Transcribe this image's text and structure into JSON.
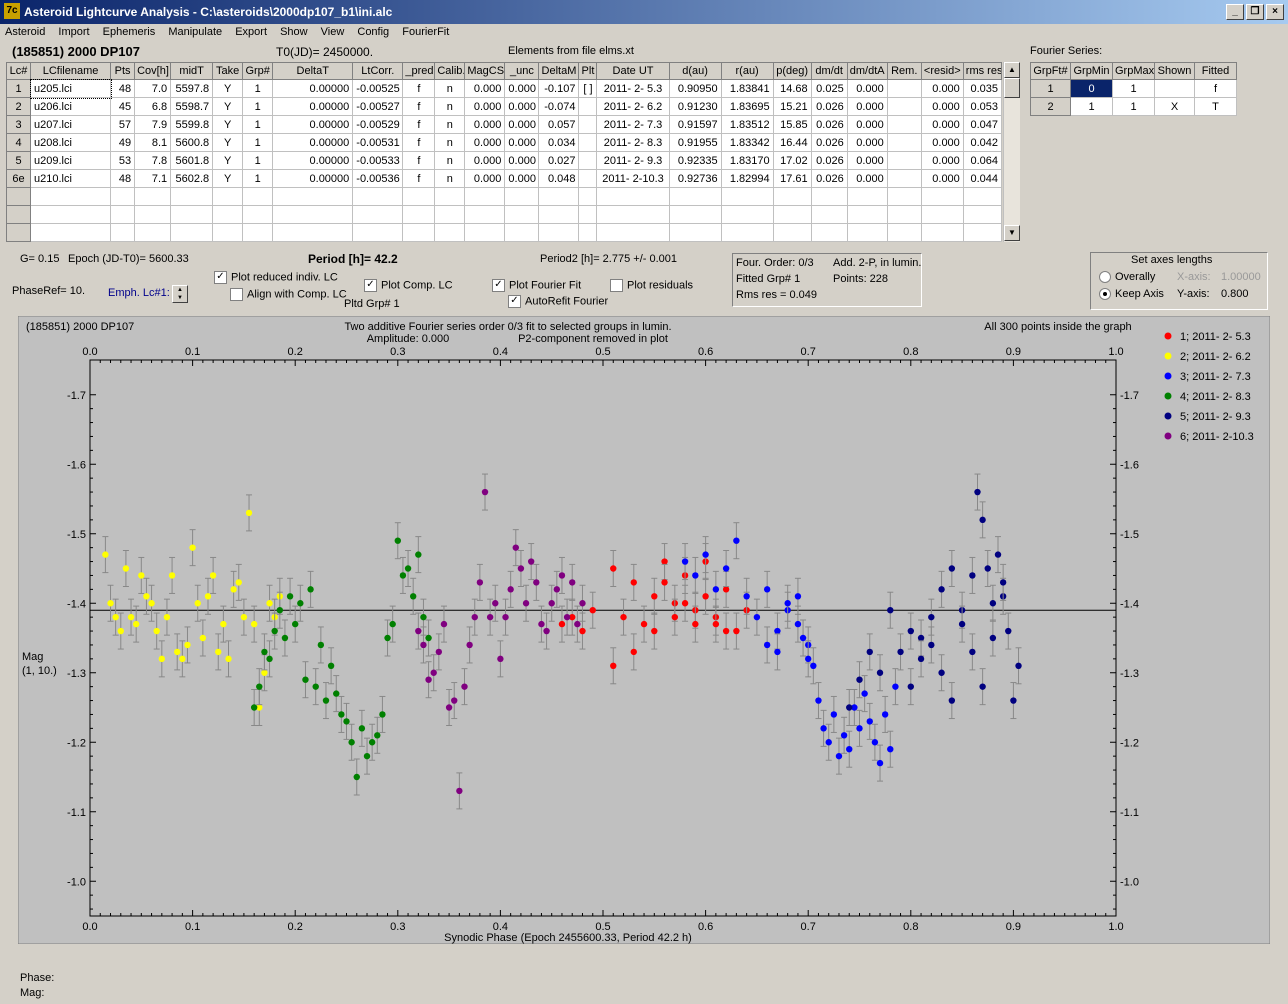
{
  "window": {
    "title": "Asteroid Lightcurve Analysis - C:\\asteroids\\2000dp107_b1\\ini.alc",
    "app_icon": "7c"
  },
  "menu": [
    "Asteroid",
    "Import",
    "Ephemeris",
    "Manipulate",
    "Export",
    "Show",
    "View",
    "Config",
    "FourierFit"
  ],
  "header": {
    "object": "(185851) 2000 DP107",
    "t0": "T0(JD)= 2450000.",
    "elements": "Elements from file elms.xt"
  },
  "lc_table": {
    "columns": [
      "Lc#",
      "LCfilename",
      "Pts",
      "Cov[h]",
      "midT",
      "Take",
      "Grp#",
      "DeltaT",
      "LtCorr.",
      "_pred.",
      "Calib.",
      "MagCS",
      "_unc",
      "DeltaM",
      "Plt",
      "Date UT",
      "d(au)",
      "r(au)",
      "p(deg)",
      "dm/dt",
      "dm/dtA",
      "Rem.",
      "<resid>",
      "rms res"
    ],
    "rows": [
      [
        "1",
        "u205.lci",
        "48",
        "7.0",
        "5597.8",
        "Y",
        "1",
        "0.00000",
        "-0.00525",
        "f",
        "n",
        "0.000",
        "0.000",
        "-0.107",
        "[ ]",
        "2011- 2- 5.3",
        "0.90950",
        "1.83841",
        "14.68",
        "0.025",
        "0.000",
        "",
        "0.000",
        "0.035"
      ],
      [
        "2",
        "u206.lci",
        "45",
        "6.8",
        "5598.7",
        "Y",
        "1",
        "0.00000",
        "-0.00527",
        "f",
        "n",
        "0.000",
        "0.000",
        "-0.074",
        "",
        "2011- 2- 6.2",
        "0.91230",
        "1.83695",
        "15.21",
        "0.026",
        "0.000",
        "",
        "0.000",
        "0.053"
      ],
      [
        "3",
        "u207.lci",
        "57",
        "7.9",
        "5599.8",
        "Y",
        "1",
        "0.00000",
        "-0.00529",
        "f",
        "n",
        "0.000",
        "0.000",
        "0.057",
        "",
        "2011- 2- 7.3",
        "0.91597",
        "1.83512",
        "15.85",
        "0.026",
        "0.000",
        "",
        "0.000",
        "0.047"
      ],
      [
        "4",
        "u208.lci",
        "49",
        "8.1",
        "5600.8",
        "Y",
        "1",
        "0.00000",
        "-0.00531",
        "f",
        "n",
        "0.000",
        "0.000",
        "0.034",
        "",
        "2011- 2- 8.3",
        "0.91955",
        "1.83342",
        "16.44",
        "0.026",
        "0.000",
        "",
        "0.000",
        "0.042"
      ],
      [
        "5",
        "u209.lci",
        "53",
        "7.8",
        "5601.8",
        "Y",
        "1",
        "0.00000",
        "-0.00533",
        "f",
        "n",
        "0.000",
        "0.000",
        "0.027",
        "",
        "2011- 2- 9.3",
        "0.92335",
        "1.83170",
        "17.02",
        "0.026",
        "0.000",
        "",
        "0.000",
        "0.064"
      ],
      [
        "6e",
        "u210.lci",
        "48",
        "7.1",
        "5602.8",
        "Y",
        "1",
        "0.00000",
        "-0.00536",
        "f",
        "n",
        "0.000",
        "0.000",
        "0.048",
        "",
        "2011- 2-10.3",
        "0.92736",
        "1.82994",
        "17.61",
        "0.026",
        "0.000",
        "",
        "0.000",
        "0.044"
      ]
    ],
    "empty_rows": 3
  },
  "fourier": {
    "title": "Fourier Series:",
    "columns": [
      "GrpFt#",
      "GrpMin",
      "GrpMax",
      "Shown",
      "Fitted"
    ],
    "rows": [
      [
        "1",
        "0",
        "1",
        "",
        "f"
      ],
      [
        "2",
        "1",
        "1",
        "X",
        "T"
      ]
    ]
  },
  "controls": {
    "g_label": "G= 0.15",
    "epoch_label": "Epoch (JD-T0)= 5600.33",
    "period_label": "Period [h]=",
    "period_value": "42.2",
    "period2_label": "Period2 [h]= 2.775 +/- 0.001",
    "phaseref": "PhaseRef= 10.",
    "emph": "Emph. Lc#1:",
    "plot_reduced": "Plot reduced indiv. LC",
    "align_comp": "Align with Comp. LC",
    "plot_comp": "Plot Comp. LC",
    "pltd_grp": "Pltd Grp#  1",
    "plot_fourier": "Plot Fourier Fit",
    "plot_resid": "Plot residuals",
    "autorefit": "AutoRefit Fourier",
    "info": {
      "order": "Four. Order:  0/3",
      "add": "Add. 2-P, in lumin.",
      "fitted": "Fitted Grp# 1",
      "points": "Points: 228",
      "rms": "Rms res     = 0.049"
    },
    "axes": {
      "title": "Set axes lengths",
      "overall": "Overally",
      "keep": "Keep Axis",
      "xaxis_label": "X-axis:",
      "xaxis_val": "1.00000",
      "yaxis_label": "Y-axis:",
      "yaxis_val": "0.800"
    }
  },
  "status": {
    "phase": "Phase:",
    "mag": "Mag:"
  },
  "chart_data": {
    "type": "scatter",
    "title_left": "(185851) 2000 DP107",
    "title_center1": "Two additive Fourier series order 0/3 fit to selected groups in lumin.",
    "title_center2a": "Amplitude: 0.000",
    "title_center2b": "P2-component removed in plot",
    "title_right": "All 300 points inside the graph",
    "xlabel": "Synodic Phase (Epoch 2455600.33, Period 42.2 h)",
    "ylabel1": "Mag",
    "ylabel2": "(1, 10.)",
    "xlim": [
      0,
      1
    ],
    "ylim": [
      -1.75,
      -0.95
    ],
    "xticks": [
      0.0,
      0.1,
      0.2,
      0.3,
      0.4,
      0.5,
      0.6,
      0.7,
      0.8,
      0.9,
      1.0
    ],
    "xticklabels": [
      "0.0",
      "0.1",
      "0.2",
      "0.3",
      "0.4",
      "0.5",
      "0.6",
      "0.7",
      "0.8",
      "0.9",
      "1.0"
    ],
    "yticks": [
      -1.7,
      -1.6,
      -1.5,
      -1.4,
      -1.3,
      -1.2,
      -1.1,
      -1.0
    ],
    "yticklabels": [
      "-1.7",
      "-1.6",
      "-1.5",
      "-1.4",
      "-1.3",
      "-1.2",
      "-1.1",
      "-1.0"
    ],
    "fit_line": -1.39,
    "series": [
      {
        "name": "1; 2011- 2- 5.3",
        "color": "#ff0000",
        "points": [
          [
            0.46,
            -1.37
          ],
          [
            0.47,
            -1.38
          ],
          [
            0.48,
            -1.36
          ],
          [
            0.49,
            -1.39
          ],
          [
            0.51,
            -1.45
          ],
          [
            0.52,
            -1.38
          ],
          [
            0.53,
            -1.43
          ],
          [
            0.54,
            -1.37
          ],
          [
            0.55,
            -1.41
          ],
          [
            0.56,
            -1.46
          ],
          [
            0.57,
            -1.4
          ],
          [
            0.58,
            -1.44
          ],
          [
            0.59,
            -1.39
          ],
          [
            0.6,
            -1.41
          ],
          [
            0.61,
            -1.38
          ],
          [
            0.62,
            -1.42
          ],
          [
            0.51,
            -1.31
          ],
          [
            0.53,
            -1.33
          ],
          [
            0.55,
            -1.36
          ],
          [
            0.57,
            -1.38
          ],
          [
            0.59,
            -1.37
          ],
          [
            0.61,
            -1.37
          ],
          [
            0.63,
            -1.36
          ],
          [
            0.56,
            -1.43
          ],
          [
            0.58,
            -1.4
          ],
          [
            0.6,
            -1.46
          ],
          [
            0.62,
            -1.36
          ],
          [
            0.64,
            -1.39
          ]
        ]
      },
      {
        "name": "2; 2011- 2- 6.2",
        "color": "#ffff00",
        "points": [
          [
            0.015,
            -1.47
          ],
          [
            0.02,
            -1.4
          ],
          [
            0.025,
            -1.38
          ],
          [
            0.03,
            -1.36
          ],
          [
            0.035,
            -1.45
          ],
          [
            0.04,
            -1.38
          ],
          [
            0.045,
            -1.37
          ],
          [
            0.05,
            -1.44
          ],
          [
            0.055,
            -1.41
          ],
          [
            0.06,
            -1.4
          ],
          [
            0.065,
            -1.36
          ],
          [
            0.07,
            -1.32
          ],
          [
            0.075,
            -1.38
          ],
          [
            0.08,
            -1.44
          ],
          [
            0.085,
            -1.33
          ],
          [
            0.09,
            -1.32
          ],
          [
            0.095,
            -1.34
          ],
          [
            0.1,
            -1.48
          ],
          [
            0.105,
            -1.4
          ],
          [
            0.11,
            -1.35
          ],
          [
            0.115,
            -1.41
          ],
          [
            0.12,
            -1.44
          ],
          [
            0.125,
            -1.33
          ],
          [
            0.13,
            -1.37
          ],
          [
            0.135,
            -1.32
          ],
          [
            0.14,
            -1.42
          ],
          [
            0.145,
            -1.43
          ],
          [
            0.15,
            -1.38
          ],
          [
            0.155,
            -1.53
          ],
          [
            0.16,
            -1.37
          ],
          [
            0.165,
            -1.25
          ],
          [
            0.17,
            -1.3
          ],
          [
            0.175,
            -1.4
          ],
          [
            0.18,
            -1.38
          ],
          [
            0.185,
            -1.41
          ]
        ]
      },
      {
        "name": "3; 2011- 2- 7.3",
        "color": "#0000ff",
        "points": [
          [
            0.58,
            -1.46
          ],
          [
            0.59,
            -1.44
          ],
          [
            0.6,
            -1.47
          ],
          [
            0.61,
            -1.42
          ],
          [
            0.62,
            -1.45
          ],
          [
            0.63,
            -1.49
          ],
          [
            0.64,
            -1.41
          ],
          [
            0.65,
            -1.38
          ],
          [
            0.66,
            -1.42
          ],
          [
            0.67,
            -1.36
          ],
          [
            0.68,
            -1.39
          ],
          [
            0.69,
            -1.41
          ],
          [
            0.7,
            -1.34
          ],
          [
            0.705,
            -1.31
          ],
          [
            0.71,
            -1.26
          ],
          [
            0.715,
            -1.22
          ],
          [
            0.72,
            -1.2
          ],
          [
            0.725,
            -1.24
          ],
          [
            0.73,
            -1.18
          ],
          [
            0.735,
            -1.21
          ],
          [
            0.74,
            -1.19
          ],
          [
            0.745,
            -1.25
          ],
          [
            0.75,
            -1.22
          ],
          [
            0.755,
            -1.27
          ],
          [
            0.76,
            -1.23
          ],
          [
            0.765,
            -1.2
          ],
          [
            0.77,
            -1.17
          ],
          [
            0.775,
            -1.24
          ],
          [
            0.78,
            -1.19
          ],
          [
            0.785,
            -1.28
          ],
          [
            0.66,
            -1.34
          ],
          [
            0.67,
            -1.33
          ],
          [
            0.68,
            -1.4
          ],
          [
            0.69,
            -1.37
          ],
          [
            0.695,
            -1.35
          ],
          [
            0.7,
            -1.32
          ]
        ]
      },
      {
        "name": "4; 2011- 2- 8.3",
        "color": "#008000",
        "points": [
          [
            0.16,
            -1.25
          ],
          [
            0.165,
            -1.28
          ],
          [
            0.17,
            -1.33
          ],
          [
            0.175,
            -1.32
          ],
          [
            0.18,
            -1.36
          ],
          [
            0.185,
            -1.39
          ],
          [
            0.19,
            -1.35
          ],
          [
            0.195,
            -1.41
          ],
          [
            0.2,
            -1.37
          ],
          [
            0.205,
            -1.4
          ],
          [
            0.21,
            -1.29
          ],
          [
            0.215,
            -1.42
          ],
          [
            0.22,
            -1.28
          ],
          [
            0.225,
            -1.34
          ],
          [
            0.23,
            -1.26
          ],
          [
            0.235,
            -1.31
          ],
          [
            0.24,
            -1.27
          ],
          [
            0.245,
            -1.24
          ],
          [
            0.25,
            -1.23
          ],
          [
            0.255,
            -1.2
          ],
          [
            0.26,
            -1.15
          ],
          [
            0.265,
            -1.22
          ],
          [
            0.27,
            -1.18
          ],
          [
            0.275,
            -1.2
          ],
          [
            0.28,
            -1.21
          ],
          [
            0.285,
            -1.24
          ],
          [
            0.29,
            -1.35
          ],
          [
            0.295,
            -1.37
          ],
          [
            0.3,
            -1.49
          ],
          [
            0.305,
            -1.44
          ],
          [
            0.31,
            -1.45
          ],
          [
            0.315,
            -1.41
          ],
          [
            0.32,
            -1.47
          ],
          [
            0.325,
            -1.38
          ],
          [
            0.33,
            -1.35
          ]
        ]
      },
      {
        "name": "5; 2011- 2- 9.3",
        "color": "#000080",
        "points": [
          [
            0.74,
            -1.25
          ],
          [
            0.75,
            -1.29
          ],
          [
            0.76,
            -1.33
          ],
          [
            0.77,
            -1.3
          ],
          [
            0.78,
            -1.39
          ],
          [
            0.79,
            -1.33
          ],
          [
            0.8,
            -1.36
          ],
          [
            0.81,
            -1.35
          ],
          [
            0.82,
            -1.38
          ],
          [
            0.83,
            -1.42
          ],
          [
            0.84,
            -1.45
          ],
          [
            0.85,
            -1.39
          ],
          [
            0.86,
            -1.44
          ],
          [
            0.865,
            -1.56
          ],
          [
            0.87,
            -1.52
          ],
          [
            0.875,
            -1.45
          ],
          [
            0.88,
            -1.4
          ],
          [
            0.885,
            -1.47
          ],
          [
            0.89,
            -1.41
          ],
          [
            0.895,
            -1.36
          ],
          [
            0.9,
            -1.26
          ],
          [
            0.905,
            -1.31
          ],
          [
            0.83,
            -1.3
          ],
          [
            0.84,
            -1.26
          ],
          [
            0.85,
            -1.37
          ],
          [
            0.86,
            -1.33
          ],
          [
            0.87,
            -1.28
          ],
          [
            0.88,
            -1.35
          ],
          [
            0.89,
            -1.43
          ],
          [
            0.8,
            -1.28
          ],
          [
            0.81,
            -1.32
          ],
          [
            0.82,
            -1.34
          ]
        ]
      },
      {
        "name": "6; 2011- 2-10.3",
        "color": "#800080",
        "points": [
          [
            0.32,
            -1.36
          ],
          [
            0.325,
            -1.34
          ],
          [
            0.33,
            -1.29
          ],
          [
            0.335,
            -1.3
          ],
          [
            0.34,
            -1.33
          ],
          [
            0.345,
            -1.37
          ],
          [
            0.35,
            -1.25
          ],
          [
            0.355,
            -1.26
          ],
          [
            0.36,
            -1.13
          ],
          [
            0.365,
            -1.28
          ],
          [
            0.37,
            -1.34
          ],
          [
            0.375,
            -1.38
          ],
          [
            0.38,
            -1.43
          ],
          [
            0.385,
            -1.56
          ],
          [
            0.39,
            -1.38
          ],
          [
            0.395,
            -1.4
          ],
          [
            0.4,
            -1.32
          ],
          [
            0.405,
            -1.38
          ],
          [
            0.41,
            -1.42
          ],
          [
            0.415,
            -1.48
          ],
          [
            0.42,
            -1.45
          ],
          [
            0.425,
            -1.4
          ],
          [
            0.43,
            -1.46
          ],
          [
            0.435,
            -1.43
          ],
          [
            0.44,
            -1.37
          ],
          [
            0.445,
            -1.36
          ],
          [
            0.45,
            -1.4
          ],
          [
            0.455,
            -1.42
          ],
          [
            0.46,
            -1.44
          ],
          [
            0.465,
            -1.38
          ],
          [
            0.47,
            -1.43
          ],
          [
            0.475,
            -1.37
          ],
          [
            0.48,
            -1.4
          ]
        ]
      }
    ]
  }
}
